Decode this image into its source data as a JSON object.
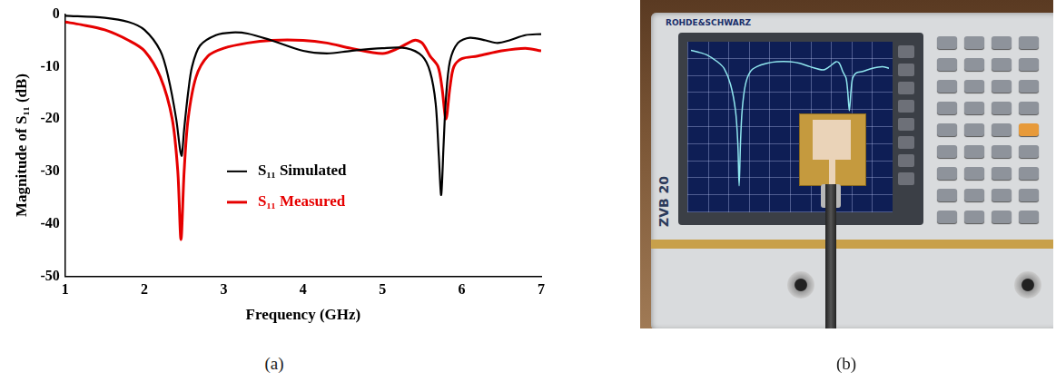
{
  "chart_data": {
    "type": "line",
    "caption": "(a)",
    "x_label": "Frequency (GHz)",
    "y_label": "Magnitude of S₁₁ (dB)",
    "xlim": [
      1,
      7
    ],
    "xticks": [
      1,
      2,
      3,
      4,
      5,
      6,
      7
    ],
    "ylim": [
      -50,
      0
    ],
    "yticks": [
      -50,
      -40,
      -30,
      -20,
      -10,
      0
    ],
    "grid": false,
    "legend": "center",
    "series": [
      {
        "name": "S₁₁ Simulated",
        "color": "#000000",
        "x": [
          1.0,
          1.5,
          1.8,
          2.0,
          2.2,
          2.3,
          2.4,
          2.45,
          2.47,
          2.5,
          2.55,
          2.6,
          2.7,
          2.9,
          3.1,
          3.3,
          3.6,
          4.0,
          4.3,
          4.6,
          5.0,
          5.3,
          5.5,
          5.6,
          5.67,
          5.71,
          5.74,
          5.77,
          5.8,
          5.85,
          5.95,
          6.1,
          6.3,
          6.45,
          6.6,
          6.8,
          7.0
        ],
        "values": [
          -0.3,
          -0.7,
          -1.5,
          -3,
          -7,
          -12,
          -20,
          -26,
          -27,
          -22,
          -15,
          -10,
          -6,
          -4,
          -3.5,
          -3.7,
          -5,
          -7,
          -7.5,
          -7,
          -6.5,
          -6.5,
          -8,
          -11,
          -17,
          -27,
          -34.5,
          -25,
          -16,
          -9,
          -5.5,
          -4.5,
          -5,
          -5.5,
          -5,
          -4,
          -3.8
        ]
      },
      {
        "name": "S₁₁ Measured",
        "color": "#e60000",
        "x": [
          1.0,
          1.2,
          1.5,
          1.8,
          2.0,
          2.2,
          2.35,
          2.42,
          2.46,
          2.5,
          2.55,
          2.65,
          2.8,
          3.0,
          3.3,
          3.6,
          4.0,
          4.3,
          4.6,
          5.0,
          5.2,
          5.4,
          5.5,
          5.6,
          5.7,
          5.75,
          5.8,
          5.85,
          5.9,
          6.0,
          6.2,
          6.5,
          6.8,
          7.0
        ],
        "values": [
          -1.5,
          -2,
          -3,
          -5,
          -7,
          -12,
          -20,
          -30,
          -43,
          -30,
          -20,
          -12,
          -8,
          -6.5,
          -5.5,
          -5,
          -5,
          -5.5,
          -6.5,
          -7.5,
          -6.5,
          -5,
          -5.5,
          -8,
          -10,
          -14,
          -20,
          -14,
          -10,
          -8.5,
          -8,
          -7,
          -6.5,
          -7
        ]
      }
    ]
  },
  "photo": {
    "caption": "(b)",
    "brand": "ROHDE&SCHWARZ",
    "model": "ZVB 20"
  }
}
